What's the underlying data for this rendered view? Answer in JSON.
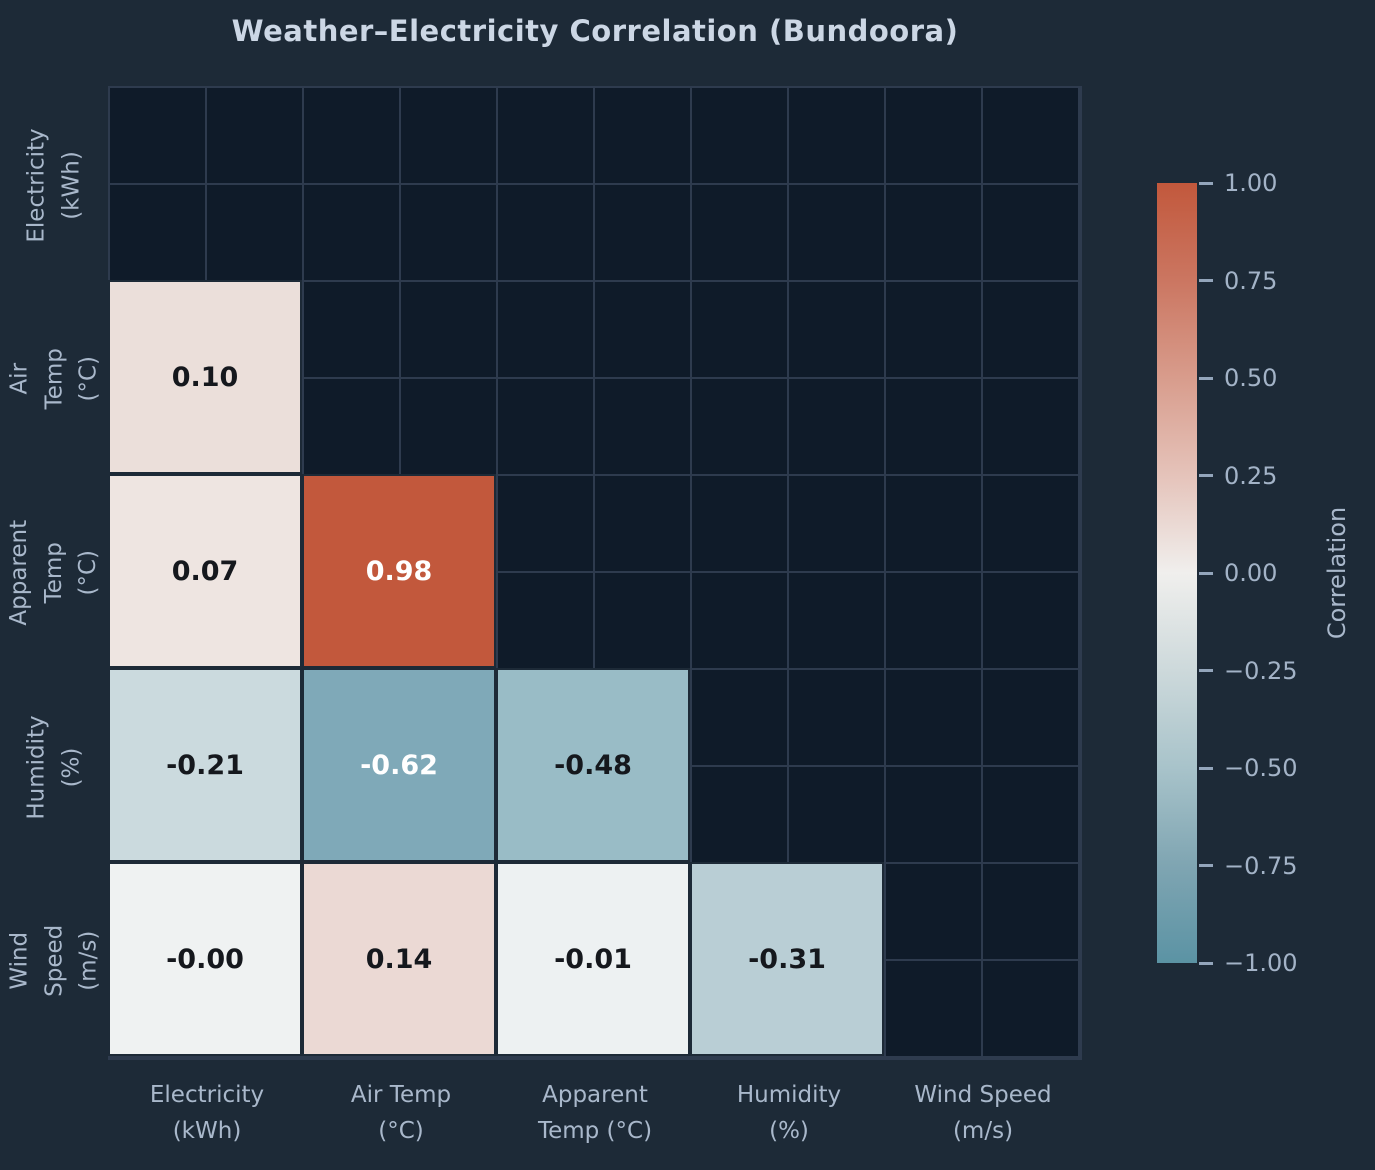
{
  "chart_data": {
    "type": "heatmap",
    "title": "Weather–Electricity Correlation (Bundoora)",
    "categories": [
      "Electricity (kWh)",
      "Air Temp (°C)",
      "Apparent Temp (°C)",
      "Humidity (%)",
      "Wind Speed (m/s)"
    ],
    "x_tick_labels": [
      "Electricity\n(kWh)",
      "Air Temp\n(°C)",
      "Apparent\nTemp (°C)",
      "Humidity\n(%)",
      "Wind Speed\n(m/s)"
    ],
    "y_tick_labels": [
      "Electricity\n(kWh)",
      "Air Temp\n(°C)",
      "Apparent\nTemp (°C)",
      "Humidity\n(%)",
      "Wind Speed\n(m/s)"
    ],
    "matrix_note": "lower triangle shown, diagonal and upper triangle masked",
    "values": [
      [
        null,
        null,
        null,
        null,
        null
      ],
      [
        0.1,
        null,
        null,
        null,
        null
      ],
      [
        0.07,
        0.98,
        null,
        null,
        null
      ],
      [
        -0.21,
        -0.62,
        -0.48,
        null,
        null
      ],
      [
        -0.0,
        0.14,
        -0.01,
        -0.31,
        null
      ]
    ],
    "cells": [
      {
        "row": 1,
        "col": 0,
        "display": "0.10",
        "bg": "#ebdfda",
        "fg": "#15181d"
      },
      {
        "row": 2,
        "col": 0,
        "display": "0.07",
        "bg": "#eee5e1",
        "fg": "#15181d"
      },
      {
        "row": 2,
        "col": 1,
        "display": "0.98",
        "bg": "#c2583c",
        "fg": "#ffffff"
      },
      {
        "row": 3,
        "col": 0,
        "display": "-0.21",
        "bg": "#cbdade",
        "fg": "#15181d"
      },
      {
        "row": 3,
        "col": 1,
        "display": "-0.62",
        "bg": "#7fa9b8",
        "fg": "#ffffff"
      },
      {
        "row": 3,
        "col": 2,
        "display": "-0.48",
        "bg": "#99bcc6",
        "fg": "#15181d"
      },
      {
        "row": 4,
        "col": 0,
        "display": "-0.00",
        "bg": "#eff2f2",
        "fg": "#15181d"
      },
      {
        "row": 4,
        "col": 1,
        "display": "0.14",
        "bg": "#ebd9d4",
        "fg": "#15181d"
      },
      {
        "row": 4,
        "col": 2,
        "display": "-0.01",
        "bg": "#edf1f2",
        "fg": "#15181d"
      },
      {
        "row": 4,
        "col": 3,
        "display": "-0.31",
        "bg": "#b9ced5",
        "fg": "#15181d"
      }
    ],
    "colorbar": {
      "label": "Correlation",
      "tick_labels": [
        "1.00",
        "0.75",
        "0.50",
        "0.25",
        "0.00",
        "−0.25",
        "−0.50",
        "−0.75",
        "−1.00"
      ],
      "tick_values": [
        1.0,
        0.75,
        0.5,
        0.25,
        0.0,
        -0.25,
        -0.5,
        -0.75,
        -1.0
      ],
      "range": [
        -1.0,
        1.0
      ],
      "gradient_stops": [
        {
          "pos": 0,
          "color": "#c2583c"
        },
        {
          "pos": 12.5,
          "color": "#cb7661"
        },
        {
          "pos": 25,
          "color": "#d89c8c"
        },
        {
          "pos": 37.5,
          "color": "#e5c3ba"
        },
        {
          "pos": 50,
          "color": "#f0efed"
        },
        {
          "pos": 62.5,
          "color": "#cdd9db"
        },
        {
          "pos": 75,
          "color": "#a8c3ca"
        },
        {
          "pos": 87.5,
          "color": "#7fa5b2"
        },
        {
          "pos": 100,
          "color": "#5b93a4"
        }
      ]
    },
    "colors": {
      "figure_background": "#1d2a37",
      "masked_cell": "#0f1b29",
      "grid_line": "#2e3b4e",
      "tick_text": "#a9b8cb",
      "title_text": "#ccd7e5"
    },
    "layout_hints": {
      "grid": true,
      "legend_position": "right-colorbar",
      "masked_upper_triangle": true
    }
  }
}
